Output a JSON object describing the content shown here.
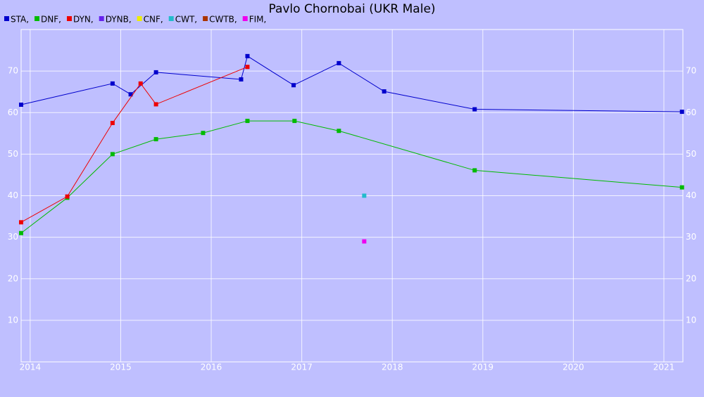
{
  "chart_data": {
    "type": "line",
    "title": "Pavlo Chornobai (UKR Male)",
    "xlim": [
      2013.9,
      2021.21
    ],
    "xticks": [
      2014,
      2015,
      2016,
      2017,
      2018,
      2019,
      2020,
      2021
    ],
    "ylim": [
      0,
      80
    ],
    "yticks": [
      10,
      20,
      30,
      40,
      50,
      60,
      70
    ],
    "grid": true,
    "series": [
      {
        "name": "STA,",
        "color": "#0000cc",
        "x": [
          2013.9,
          2014.91,
          2015.11,
          2015.39,
          2016.33,
          2016.4,
          2016.91,
          2017.41,
          2017.91,
          2018.91,
          2021.2
        ],
        "values": [
          61.9,
          67,
          64.4,
          69.7,
          68,
          73.6,
          66.6,
          71.9,
          65.1,
          60.8,
          60.2
        ]
      },
      {
        "name": "DNF,",
        "color": "#00bb00",
        "x": [
          2013.9,
          2014.41,
          2014.91,
          2015.39,
          2015.91,
          2016.4,
          2016.92,
          2017.41,
          2018.91,
          2021.2
        ],
        "values": [
          31,
          39.5,
          50,
          53.6,
          55.1,
          58,
          58,
          55.6,
          46.1,
          42
        ]
      },
      {
        "name": "DYN,",
        "color": "#ee0000",
        "x": [
          2013.9,
          2014.41,
          2014.91,
          2015.22,
          2015.39,
          2016.4
        ],
        "values": [
          33.6,
          39.8,
          57.5,
          67,
          62,
          71
        ]
      },
      {
        "name": "DYNB,",
        "color": "#6622ee",
        "x": [],
        "values": []
      },
      {
        "name": "CNF,",
        "color": "#eeee00",
        "x": [],
        "values": []
      },
      {
        "name": "CWT,",
        "color": "#22bbcc",
        "x": [
          2017.69
        ],
        "values": [
          40
        ]
      },
      {
        "name": "CWTB,",
        "color": "#aa3300",
        "x": [],
        "values": []
      },
      {
        "name": "FIM,",
        "color": "#ee00ee",
        "x": [
          2017.69
        ],
        "values": [
          29
        ]
      }
    ]
  }
}
